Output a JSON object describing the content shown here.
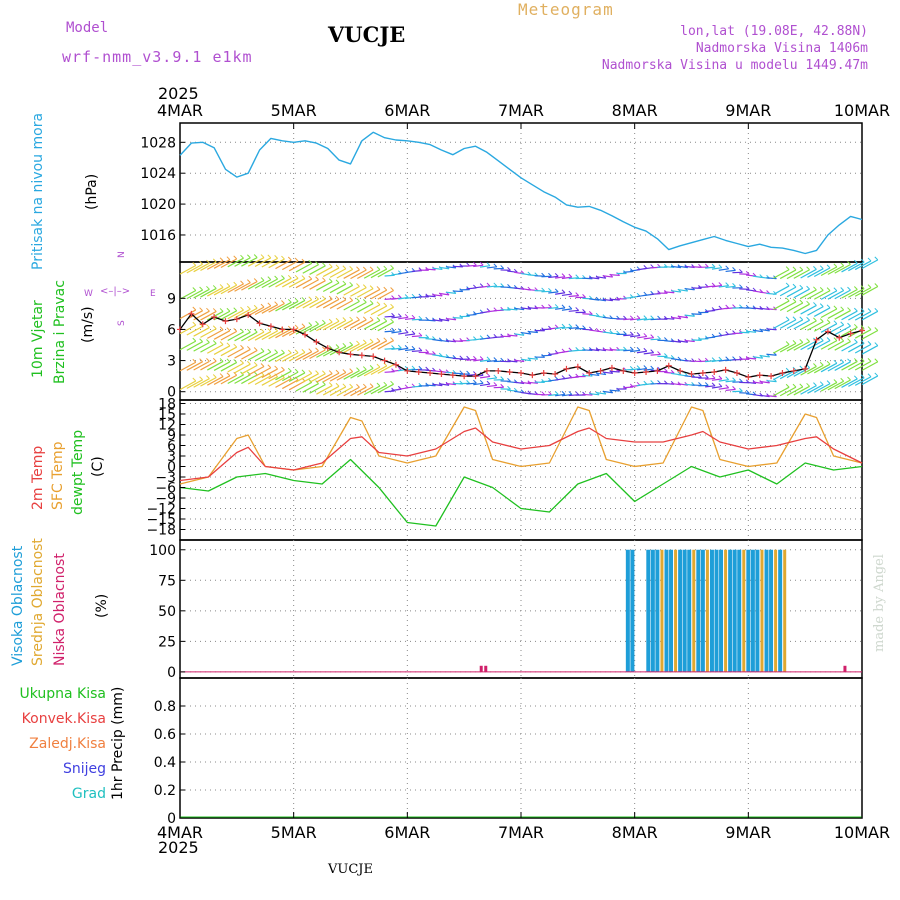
{
  "header": {
    "model_label": "Model",
    "model_name": "wrf-nmm_v3.9.1 e1km",
    "station": "VUCJE",
    "meteogram": "Meteogram",
    "lonlat": "lon,lat (19.08E, 42.88N)",
    "altitude": "Nadmorska Visina 1406m",
    "model_altitude": "Nadmorska Visina u modelu 1449.47m",
    "footer_station": "VUCJE",
    "credit": "made by Angel"
  },
  "colors": {
    "pressure": "#2aa8e0",
    "temp2m": "#e84040",
    "sfc_temp": "#e8a030",
    "dewpt": "#20c020",
    "model_purple": "#b050d0",
    "meteogram_gold": "#e0b060",
    "high_cloud": "#1e9ed8",
    "mid_cloud": "#e0a830",
    "low_cloud": "#d0206a"
  },
  "chart_data": [
    {
      "type": "line",
      "title": "",
      "ylabel": "Pritisak na nivou mora",
      "unit": "(hPa)",
      "x_ticks": [
        "4MAR",
        "5MAR",
        "6MAR",
        "7MAR",
        "8MAR",
        "9MAR",
        "10MAR"
      ],
      "x_year": "2025",
      "y_ticks": [
        1016,
        1020,
        1024,
        1028
      ],
      "ylim": [
        1012.5,
        1030.5
      ],
      "grid": true,
      "series": [
        {
          "name": "pressure",
          "x": [
            0,
            0.1,
            0.2,
            0.3,
            0.4,
            0.5,
            0.6,
            0.7,
            0.8,
            0.9,
            1.0,
            1.1,
            1.2,
            1.3,
            1.4,
            1.5,
            1.6,
            1.7,
            1.8,
            1.9,
            2.0,
            2.1,
            2.2,
            2.3,
            2.4,
            2.5,
            2.6,
            2.7,
            2.8,
            2.9,
            3.0,
            3.1,
            3.2,
            3.3,
            3.4,
            3.5,
            3.6,
            3.7,
            3.8,
            3.9,
            4.0,
            4.1,
            4.2,
            4.3,
            4.4,
            4.5,
            4.6,
            4.7,
            4.8,
            4.9,
            5.0,
            5.1,
            5.2,
            5.3,
            5.4,
            5.5,
            5.6,
            5.7,
            5.8,
            5.9,
            6.0
          ],
          "values": [
            1026.3,
            1027.9,
            1028.0,
            1027.3,
            1024.5,
            1023.5,
            1024.0,
            1027.0,
            1028.5,
            1028.2,
            1028.0,
            1028.2,
            1027.9,
            1027.2,
            1025.7,
            1025.2,
            1028.2,
            1029.3,
            1028.6,
            1028.3,
            1028.2,
            1028.0,
            1027.7,
            1027.0,
            1026.4,
            1027.2,
            1027.5,
            1026.7,
            1025.6,
            1024.5,
            1023.4,
            1022.5,
            1021.6,
            1020.9,
            1019.9,
            1019.6,
            1019.7,
            1019.2,
            1018.5,
            1017.7,
            1017.0,
            1016.5,
            1015.5,
            1014.1,
            1014.6,
            1015.0,
            1015.4,
            1015.8,
            1015.3,
            1014.9,
            1014.5,
            1014.8,
            1014.4,
            1014.3,
            1014.0,
            1013.6,
            1014.0,
            1016.0,
            1017.3,
            1018.4,
            1018.0
          ]
        }
      ]
    },
    {
      "type": "line",
      "title": "",
      "ylabel": "10m Vjetar",
      "ylabel2": "Brzina i Pravac",
      "unit": "(m/s)",
      "compass": {
        "n": "N",
        "s": "S",
        "e": "E",
        "w": "W"
      },
      "y_ticks": [
        0,
        3,
        6,
        9
      ],
      "ylim": [
        -0.8,
        12.5
      ],
      "grid": true,
      "series": [
        {
          "name": "wind speed",
          "x": [
            0,
            0.1,
            0.2,
            0.3,
            0.4,
            0.5,
            0.6,
            0.7,
            0.8,
            0.9,
            1.0,
            1.1,
            1.2,
            1.3,
            1.4,
            1.5,
            1.6,
            1.7,
            1.8,
            1.9,
            2.0,
            2.1,
            2.2,
            2.3,
            2.4,
            2.5,
            2.6,
            2.7,
            2.8,
            2.9,
            3.0,
            3.1,
            3.2,
            3.3,
            3.4,
            3.5,
            3.6,
            3.7,
            3.8,
            3.9,
            4.0,
            4.1,
            4.2,
            4.3,
            4.4,
            4.5,
            4.6,
            4.7,
            4.8,
            4.9,
            5.0,
            5.1,
            5.2,
            5.3,
            5.4,
            5.5,
            5.6,
            5.7,
            5.8,
            5.9,
            6.0
          ],
          "values": [
            6.0,
            7.5,
            6.5,
            7.2,
            6.8,
            7.0,
            7.4,
            6.6,
            6.3,
            6.0,
            6.0,
            5.5,
            4.8,
            4.2,
            3.8,
            3.6,
            3.5,
            3.4,
            3.0,
            2.6,
            2.0,
            1.9,
            1.8,
            1.7,
            1.6,
            1.5,
            1.5,
            2.0,
            2.0,
            1.9,
            1.8,
            1.6,
            1.8,
            1.7,
            2.2,
            2.4,
            1.8,
            2.0,
            2.3,
            2.0,
            1.8,
            1.9,
            2.0,
            2.5,
            2.0,
            1.7,
            1.8,
            1.9,
            2.1,
            1.8,
            1.4,
            1.6,
            1.5,
            1.8,
            2.0,
            2.2,
            5.0,
            5.8,
            5.2,
            5.6,
            5.9
          ]
        }
      ]
    },
    {
      "type": "line",
      "title": "",
      "ylabels": [
        "2m Temp",
        "SFC Temp",
        "dewpt Temp"
      ],
      "unit": "(C)",
      "y_ticks": [
        18,
        15,
        12,
        9,
        6,
        3,
        0,
        -3,
        -6,
        -9,
        -12,
        -15,
        -18
      ],
      "y_tick_labels": [
        "18",
        "15",
        "12",
        "9",
        "6",
        "3",
        "0",
        "−3",
        "−6",
        "−9",
        "−12",
        "−15",
        "−18"
      ],
      "ylim": [
        -21,
        19
      ],
      "grid": true,
      "series": [
        {
          "name": "2m Temp",
          "x": [
            0,
            0.25,
            0.5,
            0.6,
            0.75,
            1.0,
            1.25,
            1.5,
            1.6,
            1.75,
            2.0,
            2.25,
            2.5,
            2.6,
            2.75,
            3.0,
            3.25,
            3.5,
            3.6,
            3.75,
            4.0,
            4.25,
            4.5,
            4.6,
            4.75,
            5.0,
            5.25,
            5.5,
            5.6,
            5.75,
            6.0
          ],
          "values": [
            -4,
            -3,
            4,
            5.5,
            0,
            -1,
            1,
            8,
            8.5,
            4,
            3,
            5,
            10,
            11,
            7,
            5,
            6,
            10,
            11,
            8,
            7,
            7,
            9,
            10,
            7,
            5,
            6,
            8,
            8.5,
            5,
            1
          ]
        },
        {
          "name": "SFC Temp",
          "x": [
            0,
            0.25,
            0.5,
            0.6,
            0.75,
            1.0,
            1.25,
            1.5,
            1.6,
            1.75,
            2.0,
            2.25,
            2.5,
            2.6,
            2.75,
            3.0,
            3.25,
            3.5,
            3.6,
            3.75,
            4.0,
            4.25,
            4.5,
            4.6,
            4.75,
            5.0,
            5.25,
            5.5,
            5.6,
            5.75,
            6.0
          ],
          "values": [
            -5,
            -3,
            8,
            9,
            0,
            -1,
            0,
            14,
            13,
            3,
            1,
            3,
            17,
            16,
            2,
            0,
            1,
            17,
            16,
            2,
            0,
            1,
            17,
            16,
            2,
            0,
            1,
            15,
            14,
            3,
            1
          ]
        },
        {
          "name": "dewpt Temp",
          "x": [
            0,
            0.25,
            0.5,
            0.75,
            1.0,
            1.25,
            1.5,
            1.75,
            2.0,
            2.25,
            2.5,
            2.75,
            3.0,
            3.25,
            3.5,
            3.75,
            4.0,
            4.25,
            4.5,
            4.75,
            5.0,
            5.25,
            5.5,
            5.75,
            6.0
          ],
          "values": [
            -6,
            -7,
            -3,
            -2,
            -4,
            -5,
            2,
            -6,
            -16,
            -17,
            -3,
            -6,
            -12,
            -13,
            -5,
            -2,
            -10,
            -5,
            0,
            -3,
            -1,
            -5,
            1,
            -1,
            0
          ]
        }
      ]
    },
    {
      "type": "bar",
      "title": "",
      "ylabels": [
        "Visoka Oblacnost",
        "Srednja Oblacnost",
        "Niska Oblacnost"
      ],
      "unit": "(%)",
      "y_ticks": [
        0,
        25,
        50,
        75,
        100
      ],
      "ylim": [
        -5,
        108
      ],
      "grid": true,
      "series": [
        {
          "name": "Visoka Oblacnost",
          "x": [
            3.94,
            3.98,
            4.12,
            4.16,
            4.2,
            4.28,
            4.32,
            4.4,
            4.44,
            4.48,
            4.56,
            4.6,
            4.68,
            4.72,
            4.76,
            4.84,
            4.88,
            4.92,
            5.0,
            5.04,
            5.08,
            5.16,
            5.2,
            5.28
          ],
          "values": [
            100,
            100,
            100,
            100,
            100,
            100,
            100,
            100,
            100,
            100,
            100,
            100,
            100,
            100,
            100,
            100,
            100,
            100,
            100,
            100,
            100,
            100,
            100,
            100
          ]
        },
        {
          "name": "Srednja Oblacnost",
          "x": [
            4.24,
            4.36,
            4.52,
            4.64,
            4.8,
            4.96,
            5.12,
            5.24,
            5.32
          ],
          "values": [
            100,
            100,
            100,
            100,
            100,
            100,
            100,
            100,
            100
          ]
        },
        {
          "name": "Niska Oblacnost",
          "x": [
            2.65,
            2.69,
            5.85
          ],
          "values": [
            5,
            5,
            5
          ]
        }
      ]
    },
    {
      "type": "line",
      "title": "",
      "ylabel": "1hr Precip (mm)",
      "legend": [
        "Ukupna Kisa",
        "Konvek.Kisa",
        "Zaledj.Kisa",
        "Snijeg",
        "Grad"
      ],
      "legend_colors": [
        "#20c020",
        "#e84040",
        "#f08040",
        "#4040e0",
        "#20c0c0"
      ],
      "y_ticks": [
        0,
        0.2,
        0.4,
        0.6,
        0.8
      ],
      "y_tick_labels": [
        "0",
        "0.2",
        "0.4",
        "0.6",
        "0.8"
      ],
      "ylim": [
        0,
        1.0
      ],
      "grid": true,
      "series": [
        {
          "name": "Ukupna Kisa",
          "x": [
            0,
            6
          ],
          "values": [
            0,
            0
          ]
        }
      ]
    }
  ]
}
